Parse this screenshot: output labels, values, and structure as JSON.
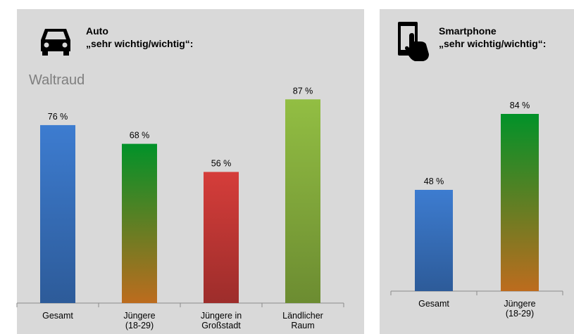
{
  "panels": [
    {
      "id": "auto",
      "icon": "car-icon",
      "title_line1": "Auto",
      "title_line2": "„sehr wichtig/wichtig“:",
      "watermark": "Waltraud"
    },
    {
      "id": "smartphone",
      "icon": "smartphone-touch-icon",
      "title_line1": "Smartphone",
      "title_line2": "„sehr wichtig/wichtig“:"
    }
  ],
  "chart_data": [
    {
      "type": "bar",
      "title": "Auto „sehr wichtig/wichtig“:",
      "categories": [
        [
          "Gesamt"
        ],
        [
          "Jüngere",
          "(18-29)"
        ],
        [
          "Jüngere in",
          "Großstadt"
        ],
        [
          "Ländlicher",
          "Raum"
        ]
      ],
      "values": [
        76,
        68,
        56,
        87
      ],
      "value_labels": [
        "76 %",
        "68 %",
        "56 %",
        "87 %"
      ],
      "colors": [
        "#3a75c4",
        "#f28a27",
        "#c93a37",
        "#8ab33f"
      ],
      "unit": "%",
      "ylim": [
        0,
        100
      ],
      "grid": false
    },
    {
      "type": "bar",
      "title": "Smartphone „sehr wichtig/wichtig“:",
      "categories": [
        [
          "Gesamt"
        ],
        [
          "Jüngere",
          "(18-29)"
        ]
      ],
      "values": [
        48,
        84
      ],
      "value_labels": [
        "48 %",
        "84 %"
      ],
      "colors": [
        "#3a75c4",
        "#f28a27"
      ],
      "unit": "%",
      "ylim": [
        0,
        100
      ],
      "grid": false
    }
  ]
}
